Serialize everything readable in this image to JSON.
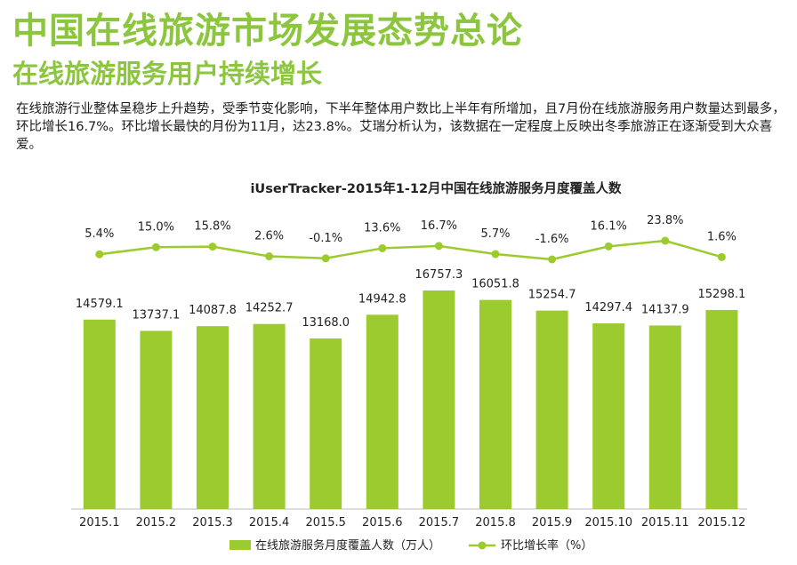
{
  "header": {
    "title": "中国在线旅游市场发展态势总论",
    "subtitle": "在线旅游服务用户持续增长",
    "description": "在线旅游行业整体呈稳步上升趋势，受季节变化影响，下半年整体用户数比上半年有所增加，且7月份在线旅游服务用户数量达到最多，环比增长16.7%。环比增长最快的月份为11月，达23.8%。艾瑞分析认为，该数据在一定程度上反映出冬季旅游正在逐渐受到大众喜爱。"
  },
  "chart_data": {
    "type": "bar",
    "title": "iUserTracker-2015年1-12月中国在线旅游服务月度覆盖人数",
    "categories": [
      "2015.1",
      "2015.2",
      "2015.3",
      "2015.4",
      "2015.5",
      "2015.6",
      "2015.7",
      "2015.8",
      "2015.9",
      "2015.10",
      "2015.11",
      "2015.12"
    ],
    "series": [
      {
        "name": "在线旅游服务月度覆盖人数（万人）",
        "type": "bar",
        "values": [
          14579.1,
          13737.1,
          14087.8,
          14252.7,
          13168.0,
          14942.8,
          16757.3,
          16051.8,
          15254.7,
          14297.4,
          14137.9,
          15298.1
        ],
        "labels": [
          "14579.1",
          "13737.1",
          "14087.8",
          "14252.7",
          "13168.0",
          "14942.8",
          "16757.3",
          "16051.8",
          "15254.7",
          "14297.4",
          "14137.9",
          "15298.1"
        ]
      },
      {
        "name": "环比增长率（%）",
        "type": "line",
        "values": [
          5.4,
          15.0,
          15.8,
          2.6,
          -0.1,
          13.6,
          16.7,
          5.7,
          -1.6,
          16.1,
          23.8,
          1.6
        ],
        "labels": [
          "5.4%",
          "15.0%",
          "15.8%",
          "2.6%",
          "-0.1%",
          "13.6%",
          "16.7%",
          "5.7%",
          "-1.6%",
          "16.1%",
          "23.8%",
          "1.6%"
        ]
      }
    ],
    "legend_position": "bottom",
    "colors": {
      "bar": "#9ccb2f",
      "line": "#9ccb2f",
      "title": "#8cc63f"
    }
  }
}
